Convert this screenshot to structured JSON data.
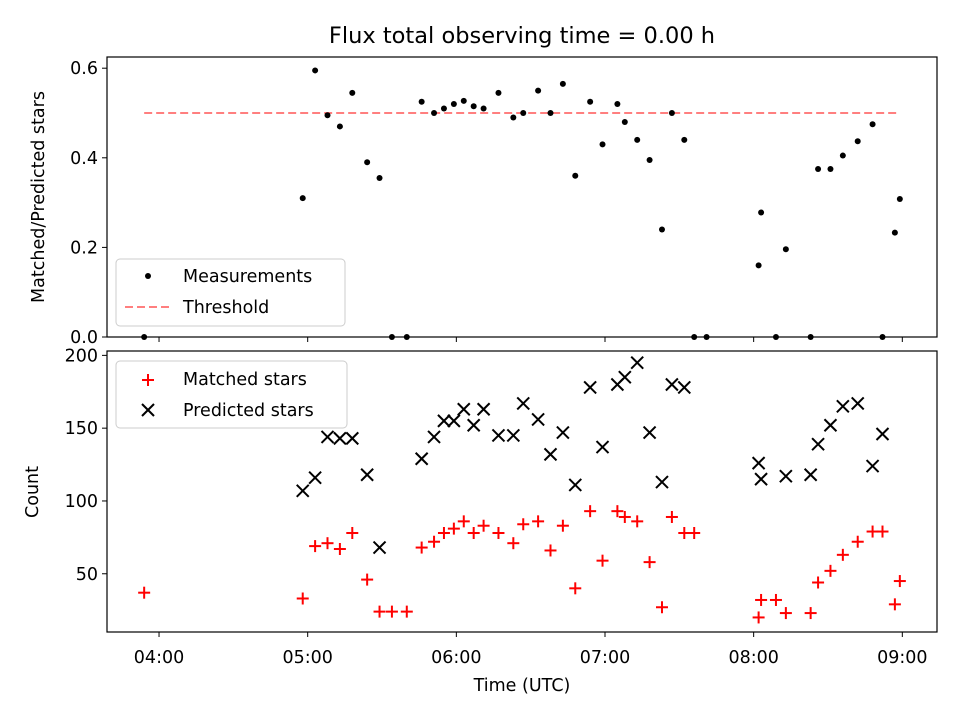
{
  "chart_data": [
    {
      "type": "scatter",
      "title": "Flux total observing time = 0.00 h",
      "xlabel": "",
      "ylabel": "Matched/Predicted stars",
      "ylim": [
        0,
        0.625
      ],
      "yticks": [
        0.0,
        0.2,
        0.4,
        0.6
      ],
      "ytick_labels": [
        "0.0",
        "0.2",
        "0.4",
        "0.6"
      ],
      "xlim": [
        "03:39",
        "09:14"
      ],
      "xticks": [
        "04:00",
        "05:00",
        "06:00",
        "07:00",
        "08:00",
        "09:00"
      ],
      "legend_position": "lower-left",
      "threshold": {
        "value": 0.5,
        "x_start": "03:54",
        "x_end": "08:59",
        "color": "#ff7f7f"
      },
      "series": [
        {
          "name": "Measurements",
          "color": "#000000",
          "marker": "dot",
          "x": [
            "03:54",
            "04:58",
            "05:03",
            "05:08",
            "05:13",
            "05:18",
            "05:24",
            "05:29",
            "05:34",
            "05:40",
            "05:46",
            "05:51",
            "05:55",
            "05:59",
            "06:03",
            "06:07",
            "06:11",
            "06:17",
            "06:23",
            "06:27",
            "06:33",
            "06:38",
            "06:43",
            "06:48",
            "06:54",
            "06:59",
            "07:05",
            "07:08",
            "07:13",
            "07:18",
            "07:23",
            "07:27",
            "07:32",
            "07:36",
            "07:41",
            "08:02",
            "08:03",
            "08:09",
            "08:13",
            "08:23",
            "08:26",
            "08:31",
            "08:36",
            "08:42",
            "08:48",
            "08:52",
            "08:57",
            "08:59"
          ],
          "y": [
            0.0,
            0.31,
            0.595,
            0.495,
            0.47,
            0.545,
            0.39,
            0.355,
            0.0,
            0.0,
            0.525,
            0.5,
            0.51,
            0.52,
            0.527,
            0.515,
            0.51,
            0.545,
            0.49,
            0.5,
            0.55,
            0.5,
            0.565,
            0.36,
            0.525,
            0.43,
            0.52,
            0.48,
            0.44,
            0.395,
            0.24,
            0.5,
            0.44,
            0.0,
            0.0,
            0.16,
            0.278,
            0.0,
            0.196,
            0.0,
            0.375,
            0.375,
            0.405,
            0.437,
            0.475,
            0.0,
            0.233,
            0.308
          ]
        }
      ]
    },
    {
      "type": "scatter",
      "title": "",
      "xlabel": "Time (UTC)",
      "ylabel": "Count",
      "ylim": [
        10,
        203
      ],
      "yticks": [
        50,
        100,
        150,
        200
      ],
      "ytick_labels": [
        "50",
        "100",
        "150",
        "200"
      ],
      "xlim": [
        "03:39",
        "09:14"
      ],
      "xticks": [
        "04:00",
        "05:00",
        "06:00",
        "07:00",
        "08:00",
        "09:00"
      ],
      "legend_position": "upper-left",
      "series": [
        {
          "name": "Matched stars",
          "color": "#ff0000",
          "marker": "plus",
          "x": [
            "03:54",
            "04:58",
            "05:03",
            "05:08",
            "05:13",
            "05:18",
            "05:24",
            "05:29",
            "05:34",
            "05:40",
            "05:46",
            "05:51",
            "05:55",
            "05:59",
            "06:03",
            "06:07",
            "06:11",
            "06:17",
            "06:23",
            "06:27",
            "06:33",
            "06:38",
            "06:43",
            "06:48",
            "06:54",
            "06:59",
            "07:05",
            "07:08",
            "07:13",
            "07:18",
            "07:23",
            "07:27",
            "07:32",
            "07:36",
            "08:02",
            "08:03",
            "08:09",
            "08:13",
            "08:23",
            "08:26",
            "08:31",
            "08:36",
            "08:42",
            "08:48",
            "08:52",
            "08:57",
            "08:59"
          ],
          "y": [
            37,
            33,
            69,
            71,
            67,
            78,
            46,
            24,
            24,
            24,
            68,
            72,
            78,
            81,
            86,
            78,
            83,
            78,
            71,
            84,
            86,
            66,
            83,
            40,
            93,
            59,
            93,
            89,
            86,
            58,
            27,
            89,
            78,
            78,
            20,
            32,
            32,
            23,
            23,
            44,
            52,
            63,
            72,
            79,
            79,
            29,
            45
          ]
        },
        {
          "name": "Predicted stars",
          "color": "#000000",
          "marker": "x",
          "x": [
            "04:58",
            "05:03",
            "05:08",
            "05:13",
            "05:18",
            "05:24",
            "05:29",
            "05:46",
            "05:51",
            "05:55",
            "05:59",
            "06:03",
            "06:07",
            "06:11",
            "06:17",
            "06:23",
            "06:27",
            "06:33",
            "06:38",
            "06:43",
            "06:48",
            "06:54",
            "06:59",
            "07:05",
            "07:08",
            "07:13",
            "07:18",
            "07:23",
            "07:27",
            "07:32",
            "08:02",
            "08:03",
            "08:13",
            "08:23",
            "08:26",
            "08:31",
            "08:36",
            "08:42",
            "08:48",
            "08:52"
          ],
          "y": [
            107,
            116,
            144,
            143,
            143,
            118,
            68,
            129,
            144,
            155,
            155,
            163,
            152,
            163,
            145,
            145,
            167,
            156,
            132,
            147,
            111,
            178,
            137,
            180,
            185,
            195,
            147,
            113,
            180,
            178,
            126,
            115,
            117,
            118,
            139,
            152,
            165,
            167,
            124,
            146
          ]
        }
      ]
    }
  ]
}
